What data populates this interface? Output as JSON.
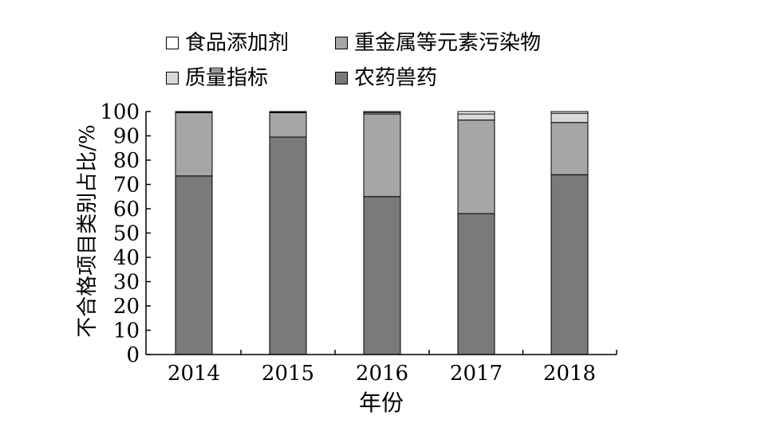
{
  "chart_data": {
    "type": "bar",
    "stacked": true,
    "categories": [
      "2014",
      "2015",
      "2016",
      "2017",
      "2018"
    ],
    "series": [
      {
        "name": "农药兽药",
        "color": "#7a7a7a",
        "values": [
          73.5,
          89.5,
          65,
          58,
          74
        ]
      },
      {
        "name": "重金属等元素污染物",
        "color": "#a6a6a6",
        "values": [
          26,
          10,
          34,
          38.5,
          21.5
        ]
      },
      {
        "name": "质量指标",
        "color": "#d9d9d9",
        "values": [
          0.3,
          0.3,
          0.6,
          2.5,
          3.8
        ]
      },
      {
        "name": "食品添加剂",
        "color": "#ffffff",
        "values": [
          0.2,
          0.2,
          0.4,
          1,
          0.7
        ]
      }
    ],
    "legend_order": [
      "食品添加剂",
      "重金属等元素污染物",
      "质量指标",
      "农药兽药"
    ],
    "xlabel": "年份",
    "ylabel": "不合格项目类别占比/%",
    "ylim": [
      0,
      100
    ],
    "yticks": [
      "0",
      "10",
      "20",
      "30",
      "40",
      "50",
      "60",
      "70",
      "80",
      "90",
      "100"
    ],
    "grid": false,
    "legend_position": "top"
  }
}
